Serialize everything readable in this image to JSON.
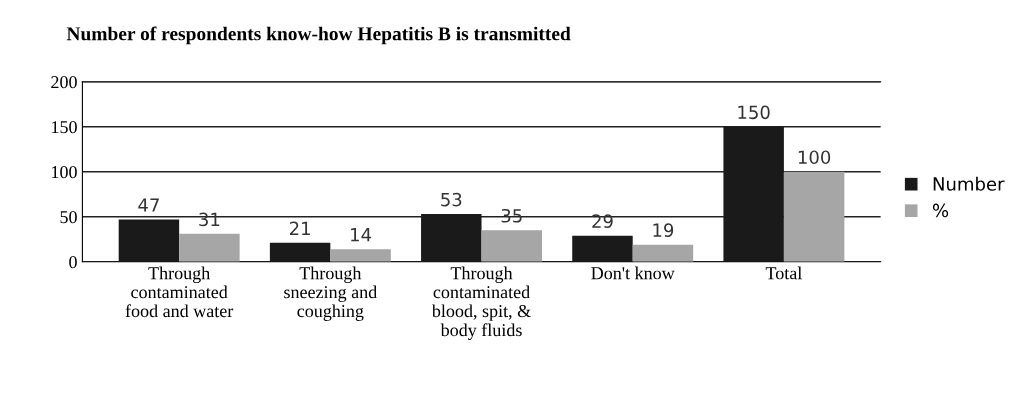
{
  "chart_data": {
    "type": "bar",
    "title": "Number of respondents know-how Hepatitis B is transmitted",
    "categories": [
      "Through\ncontaminated\nfood and water",
      "Through\nsneezing and\ncoughing",
      "Through\ncontaminated\nblood, spit, &\nbody fluids",
      "Don't know",
      "Total"
    ],
    "series": [
      {
        "name": "Number",
        "color": "#1a1a1a",
        "values": [
          47,
          21,
          53,
          29,
          150
        ]
      },
      {
        "name": "%",
        "color": "#a6a6a6",
        "values": [
          31,
          14,
          35,
          19,
          100
        ]
      }
    ],
    "ylim": [
      0,
      200
    ],
    "yticks": [
      0,
      50,
      100,
      150,
      200
    ],
    "grid": "y",
    "legend": "right",
    "data_labels": true
  }
}
